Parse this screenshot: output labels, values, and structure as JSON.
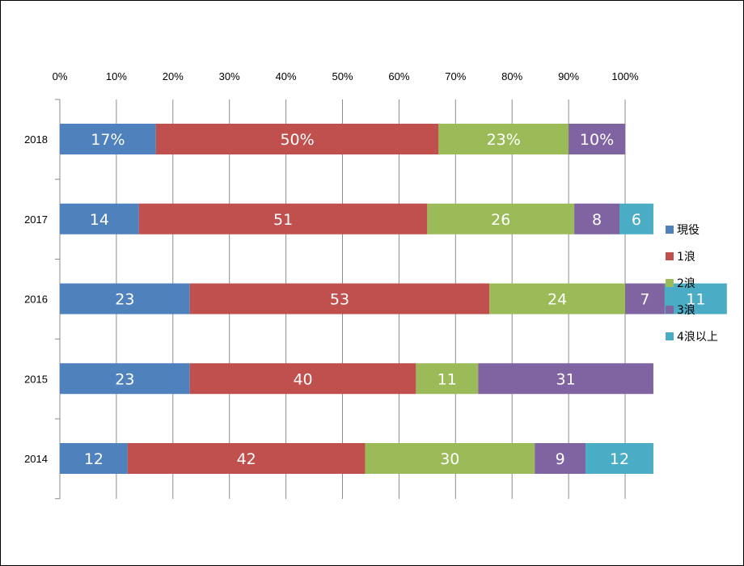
{
  "chart_data": {
    "type": "bar",
    "orientation": "horizontal",
    "stacked": "percent",
    "categories": [
      "2018",
      "2017",
      "2016",
      "2015",
      "2014"
    ],
    "series": [
      {
        "name": "現役",
        "color": "#4F81BD",
        "values": [
          17,
          14,
          23,
          23,
          12
        ],
        "labels": [
          "17%",
          "14",
          "23",
          "23",
          "12"
        ]
      },
      {
        "name": "1浪",
        "color": "#C0504D",
        "values": [
          50,
          51,
          53,
          40,
          42
        ],
        "labels": [
          "50%",
          "51",
          "53",
          "40",
          "42"
        ]
      },
      {
        "name": "2浪",
        "color": "#9BBB59",
        "values": [
          23,
          26,
          24,
          11,
          30
        ],
        "labels": [
          "23%",
          "26",
          "24",
          "11",
          "30"
        ]
      },
      {
        "name": "3浪",
        "color": "#8064A2",
        "values": [
          10,
          8,
          7,
          31,
          9
        ],
        "labels": [
          "10%",
          "8",
          "7",
          "31",
          "9"
        ]
      },
      {
        "name": "4浪以上",
        "color": "#4BACC6",
        "values": [
          0,
          6,
          11,
          0,
          12
        ],
        "labels": [
          "",
          "6",
          "11",
          "",
          "12"
        ]
      }
    ],
    "xaxis": {
      "position": "top",
      "ticks": [
        "0%",
        "10%",
        "20%",
        "30%",
        "40%",
        "50%",
        "60%",
        "70%",
        "80%",
        "90%",
        "100%"
      ],
      "range": [
        0,
        100
      ]
    },
    "grid": true,
    "legend": "right",
    "title": "",
    "xlabel": "",
    "ylabel": ""
  }
}
